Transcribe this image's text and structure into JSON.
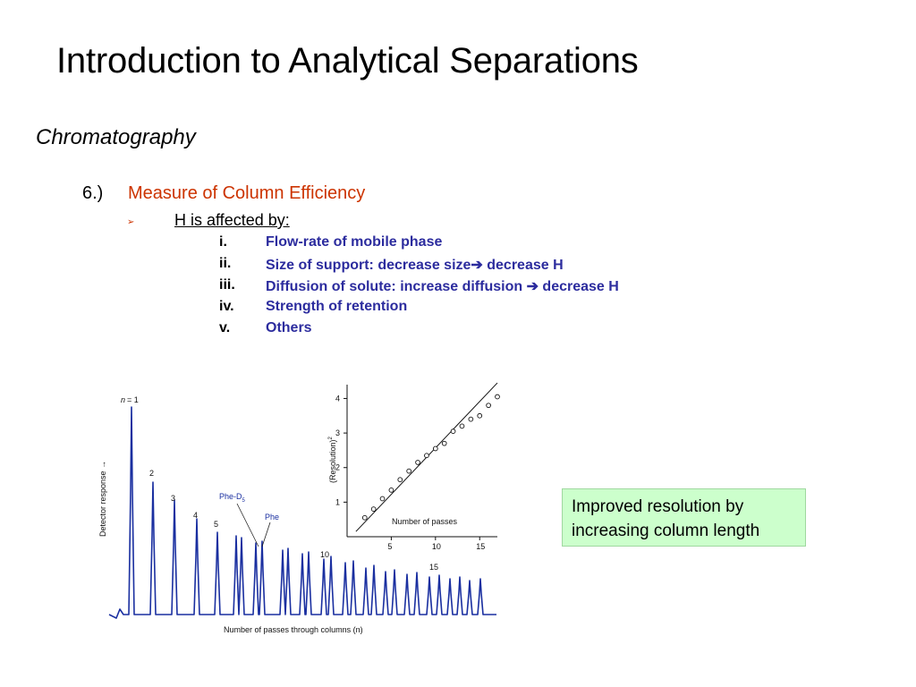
{
  "slide": {
    "title": "Introduction to Analytical Separations",
    "subtitle": "Chromatography"
  },
  "section": {
    "number": "6.)",
    "heading": "Measure of Column Efficiency",
    "bullet_glyph": "➢",
    "subheading": "H is affected by:",
    "factors": [
      {
        "num": "i.",
        "text": "Flow-rate of mobile phase"
      },
      {
        "num": "ii.",
        "text": "Size of support: decrease size➔ decrease H"
      },
      {
        "num": "iii.",
        "text": "Diffusion of solute: increase diffusion ➔ decrease H"
      },
      {
        "num": "iv.",
        "text": "Strength of retention"
      },
      {
        "num": "v.",
        "text": "Others"
      }
    ]
  },
  "figure": {
    "chromatogram": {
      "ylabel": "Detector response →",
      "xlabel": "Number of passes through columns (n)",
      "n_prefix": "n",
      "peak_labels": [
        "= 1",
        "2",
        "3",
        "4",
        "5",
        "10",
        "15"
      ],
      "annotation_phed5": "Phe-D",
      "annotation_phed5_sub": "5",
      "annotation_phe": "Phe",
      "line_color": "#1a2fa0"
    },
    "inset": {
      "ylabel": "(Resolution)",
      "ylabel_sup": "2",
      "xlabel": "Number of passes",
      "x_ticks": [
        "5",
        "10",
        "15"
      ],
      "y_ticks": [
        "1",
        "2",
        "3",
        "4"
      ]
    }
  },
  "callout": {
    "line1": "Improved resolution by",
    "line2": "increasing column length",
    "background": "#ccffcc"
  },
  "chart_data": [
    {
      "type": "scatter",
      "title": "",
      "xlabel": "Number of passes",
      "ylabel": "(Resolution)²",
      "xlim": [
        0,
        17
      ],
      "ylim": [
        0,
        4.4
      ],
      "x_ticks": [
        5,
        10,
        15
      ],
      "y_ticks": [
        1,
        2,
        3,
        4
      ],
      "series": [
        {
          "x": [
            2,
            3,
            4,
            5,
            6,
            7,
            8,
            9,
            10,
            11,
            12,
            13,
            14,
            15,
            16,
            17
          ],
          "y": [
            0.55,
            0.8,
            1.1,
            1.35,
            1.65,
            1.9,
            2.15,
            2.35,
            2.55,
            2.7,
            3.05,
            3.2,
            3.4,
            3.5,
            3.8,
            4.05
          ]
        }
      ],
      "fit_line": {
        "x": [
          1,
          17
        ],
        "y": [
          0.15,
          4.45
        ]
      }
    }
  ]
}
